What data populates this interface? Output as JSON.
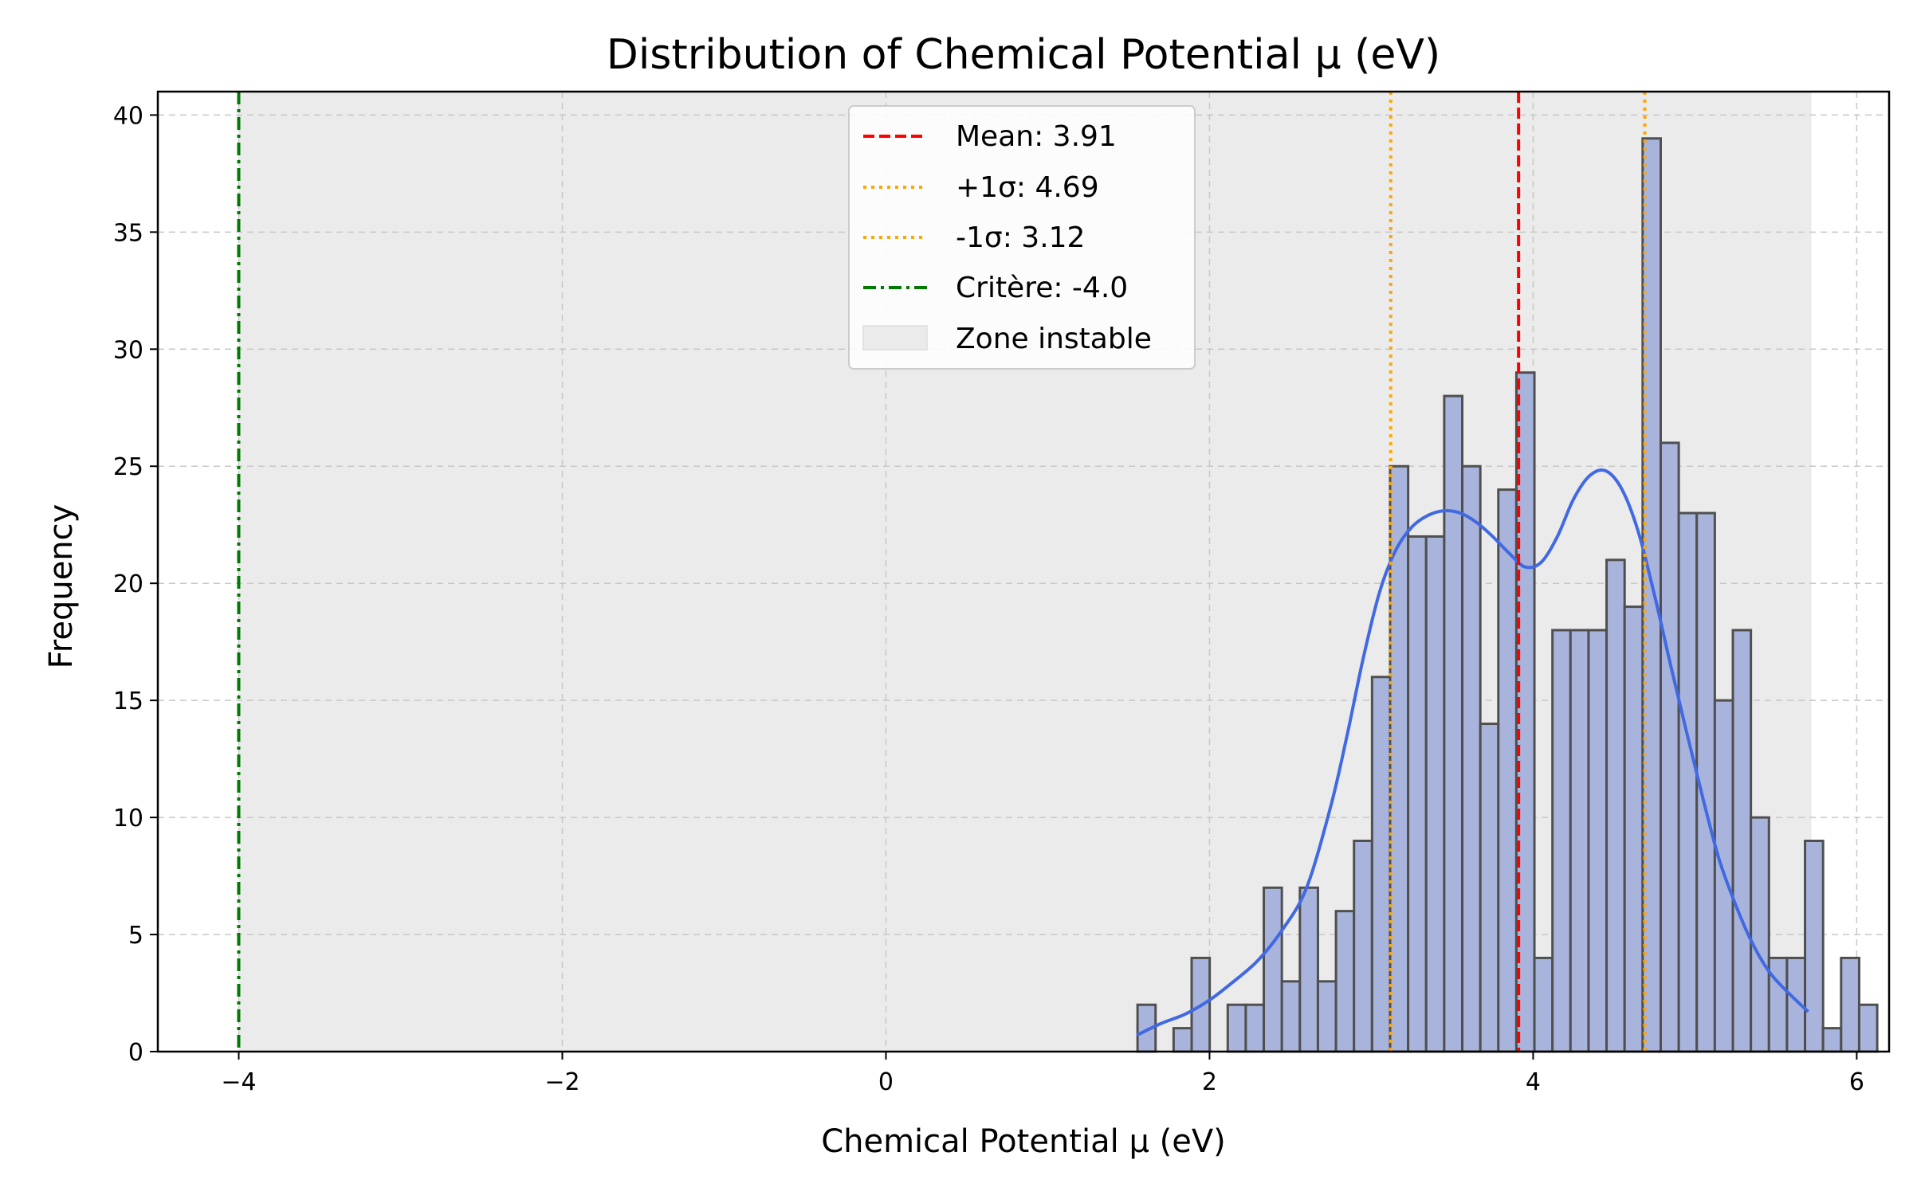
{
  "chart_data": {
    "type": "bar",
    "title": "Distribution of Chemical Potential μ (eV)",
    "xlabel": "Chemical Potential μ (eV)",
    "ylabel": "Frequency",
    "xlim": [
      -4.5,
      6.2
    ],
    "ylim": [
      0,
      41
    ],
    "xticks": [
      -4,
      -2,
      0,
      2,
      4,
      6
    ],
    "xtick_labels": [
      "−4",
      "−2",
      "0",
      "2",
      "4",
      "6"
    ],
    "yticks": [
      0,
      5,
      10,
      15,
      20,
      25,
      30,
      35,
      40
    ],
    "ytick_labels": [
      "0",
      "5",
      "10",
      "15",
      "20",
      "25",
      "30",
      "35",
      "40"
    ],
    "grid": true,
    "legend_position": "top-center",
    "colors": {
      "bar_fill": "#a8b4dc",
      "bar_edge": "#4f4f4f",
      "kde": "#4169e1",
      "mean": "#ff0000",
      "sigma": "#ffa500",
      "criterion": "#007a00",
      "zone": "#ebebeb"
    },
    "histogram": {
      "bin_start": 1.555,
      "bin_width": 0.1115,
      "counts": [
        2,
        0,
        1,
        4,
        0,
        2,
        2,
        7,
        3,
        7,
        3,
        6,
        9,
        16,
        25,
        22,
        22,
        28,
        25,
        14,
        24,
        29,
        4,
        18,
        18,
        18,
        21,
        19,
        39,
        26,
        23,
        23,
        15,
        18,
        10,
        4,
        4,
        9,
        1,
        4,
        2
      ]
    },
    "kde": {
      "x": [
        1.55,
        1.7,
        1.85,
        2.0,
        2.15,
        2.3,
        2.45,
        2.6,
        2.75,
        2.85,
        2.95,
        3.05,
        3.15,
        3.25,
        3.35,
        3.45,
        3.55,
        3.65,
        3.75,
        3.85,
        3.95,
        4.05,
        4.15,
        4.25,
        4.35,
        4.45,
        4.55,
        4.65,
        4.75,
        4.85,
        4.95,
        5.05,
        5.15,
        5.25,
        5.35,
        5.45,
        5.55,
        5.7
      ],
      "y": [
        0.7,
        1.2,
        1.6,
        2.2,
        3.0,
        3.9,
        5.2,
        7.0,
        10.5,
        13.5,
        16.8,
        19.6,
        21.4,
        22.4,
        22.9,
        23.1,
        23.0,
        22.6,
        22.0,
        21.3,
        20.7,
        20.9,
        22.0,
        23.6,
        24.6,
        24.8,
        24.0,
        22.2,
        19.5,
        16.5,
        13.6,
        10.8,
        8.2,
        6.3,
        4.7,
        3.5,
        2.7,
        1.7
      ]
    },
    "reference_lines": [
      {
        "label": "Mean: 3.91",
        "x": 3.91,
        "style": "dashed",
        "color": "#ff0000"
      },
      {
        "label": "+1σ: 4.69",
        "x": 4.69,
        "style": "dotted",
        "color": "#ffa500"
      },
      {
        "label": "-1σ: 3.12",
        "x": 3.12,
        "style": "dotted",
        "color": "#ffa500"
      },
      {
        "label": "Critère: -4.0",
        "x": -4.0,
        "style": "dashdot",
        "color": "#007a00"
      }
    ],
    "shaded_zone": {
      "label": "Zone instable",
      "x0": -4.0,
      "x1": 5.72
    },
    "legend": [
      "Mean: 3.91",
      "+1σ: 4.69",
      "-1σ: 3.12",
      "Critère: -4.0",
      "Zone instable"
    ]
  }
}
